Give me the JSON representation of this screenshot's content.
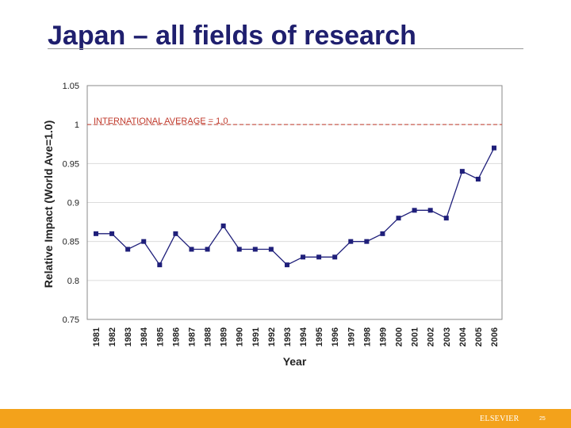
{
  "slide": {
    "title": "Japan – all fields of research",
    "footer_brand": "ELSEVIER",
    "page_number": "25"
  },
  "colors": {
    "title": "#1f1f6e",
    "series": "#1f1f7a",
    "reference_line": "#c0392b",
    "footer": "#f3a21b"
  },
  "chart_data": {
    "type": "line",
    "xlabel": "Year",
    "ylabel": "Relative Impact (World Ave=1.0)",
    "ylim": [
      0.75,
      1.05
    ],
    "yticks": [
      "0.75",
      "0.8",
      "0.85",
      "0.9",
      "0.95",
      "1",
      "1.05"
    ],
    "grid": true,
    "categories": [
      "1981",
      "1982",
      "1983",
      "1984",
      "1985",
      "1986",
      "1987",
      "1988",
      "1989",
      "1990",
      "1991",
      "1992",
      "1993",
      "1994",
      "1995",
      "1996",
      "1997",
      "1998",
      "1999",
      "2000",
      "2001",
      "2002",
      "2003",
      "2004",
      "2005",
      "2006"
    ],
    "series": [
      {
        "values": [
          0.86,
          0.86,
          0.84,
          0.85,
          0.82,
          0.86,
          0.84,
          0.84,
          0.87,
          0.84,
          0.84,
          0.84,
          0.82,
          0.83,
          0.83,
          0.83,
          0.85,
          0.85,
          0.86,
          0.88,
          0.89,
          0.89,
          0.88,
          0.94,
          0.93,
          0.97
        ]
      }
    ],
    "reference_line": {
      "value": 1.0,
      "label": "INTERNATIONAL AVERAGE = 1.0"
    }
  }
}
